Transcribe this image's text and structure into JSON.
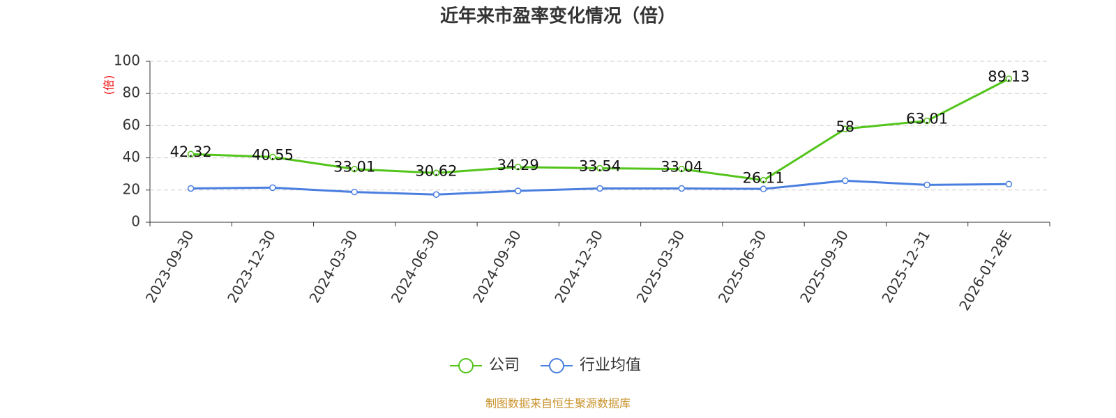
{
  "chart_data": {
    "type": "line",
    "title": "近年来市盈率变化情况（倍）",
    "y_label": "(倍)",
    "categories": [
      "2023-09-30",
      "2023-12-30",
      "2024-03-30",
      "2024-06-30",
      "2024-09-30",
      "2024-12-30",
      "2025-03-30",
      "2025-06-30",
      "2025-09-30",
      "2025-12-31",
      "2026-01-28E"
    ],
    "series": [
      {
        "name": "公司",
        "color": "#52c41a",
        "values": [
          42.32,
          40.55,
          33.01,
          30.62,
          34.29,
          33.54,
          33.04,
          26.11,
          58,
          63.01,
          89.13
        ],
        "data_labels": true
      },
      {
        "name": "行业均值",
        "color": "#4a7fe0",
        "values": [
          21.0,
          21.5,
          18.8,
          17.2,
          19.5,
          21.0,
          21.0,
          20.7,
          25.8,
          23.2,
          23.7
        ],
        "data_labels": false
      }
    ],
    "ylim": [
      0,
      100
    ],
    "yticks": [
      0,
      20,
      40,
      60,
      80,
      100
    ],
    "grid": true,
    "source": "制图数据来自恒生聚源数据库"
  }
}
